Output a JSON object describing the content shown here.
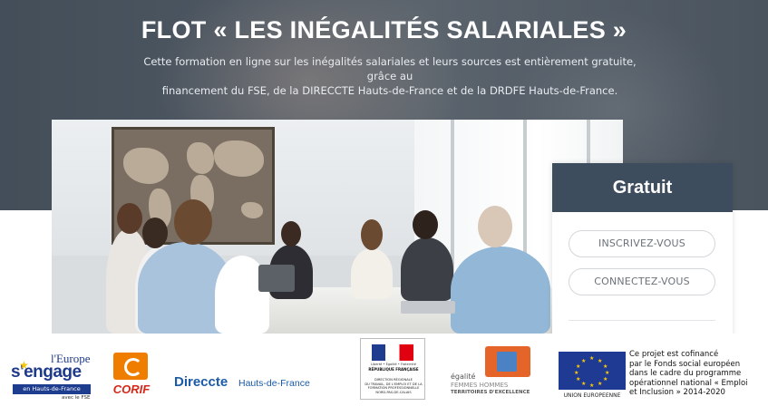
{
  "hero": {
    "title": "FLOT « LES INÉGALITÉS SALARIALES »",
    "description_line1": "Cette formation en ligne sur les inégalités salariales et leurs sources est entièrement gratuite, grâce au",
    "description_line2": "financement du FSE, de la DIRECCTE Hauts-de-France et de la DRDFE Hauts-de-France."
  },
  "card": {
    "price_label": "Gratuit",
    "register_button": "INSCRIVEZ-VOUS",
    "login_button": "CONNECTEZ-VOUS"
  },
  "logos": {
    "europe": {
      "line1": "l'Europe",
      "line2": "s'engage",
      "region": "en Hauts-de-France",
      "fund": "avec le FSE"
    },
    "corif": "CORIF",
    "direccte": {
      "name": "Direccte",
      "region": "Hauts-de-France"
    },
    "marianne": {
      "motto": "Liberté • Égalité • Fraternité",
      "republic": "RÉPUBLIQUE FRANÇAISE",
      "direction_lines": [
        "DIRECTION RÉGIONALE",
        "DU TRAVAIL, DE L'EMPLOI ET DE LA",
        "FORMATION PROFESSIONNELLE",
        "NORD-PAS-DE-CALAIS"
      ]
    },
    "egalite": {
      "word": "égalité",
      "femmes_hommes": "FEMMES HOMMES",
      "territoires": "TERRITOIRES D'EXCELLENCE"
    },
    "eu": {
      "label": "UNION EUROPEENNE"
    },
    "cofinance_lines": [
      "Ce projet est cofinancé",
      "par le Fonds social européen",
      "dans le cadre du programme",
      "opérationnel national « Emploi",
      "et Inclusion » 2014-2020"
    ]
  },
  "colors": {
    "card_header": "#3e4d5d",
    "hero_overlay": "#4c5661",
    "europe_blue": "#1e3a8a",
    "corif_orange": "#ef7d00",
    "direccte_blue": "#1a5aa7"
  }
}
